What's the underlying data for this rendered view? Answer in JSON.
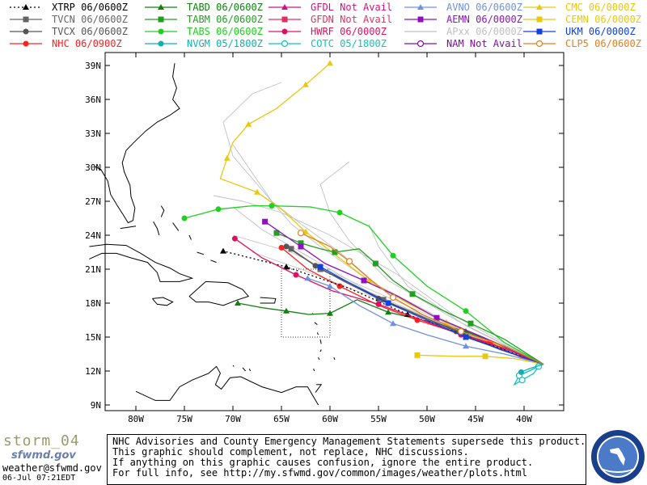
{
  "legend": [
    {
      "label": "XTRP 06/0600Z",
      "color": "#000000",
      "marker": "triangle",
      "dash": "2,3"
    },
    {
      "label": "TVCN 06/0600Z",
      "color": "#666666",
      "marker": "square",
      "dash": ""
    },
    {
      "label": "TVCX 06/0600Z",
      "color": "#555555",
      "marker": "circle",
      "dash": ""
    },
    {
      "label": "NHC 06/0900Z",
      "color": "#ff2020",
      "marker": "circle",
      "dash": ""
    },
    {
      "label": "TABD 06/0600Z",
      "color": "#108010",
      "marker": "triangle",
      "dash": ""
    },
    {
      "label": "TABM 06/0600Z",
      "color": "#20a020",
      "marker": "square",
      "dash": ""
    },
    {
      "label": "TABS 06/0600Z",
      "color": "#20d020",
      "marker": "circle",
      "dash": ""
    },
    {
      "label": "NVGM 05/1800Z",
      "color": "#10b0b0",
      "marker": "circle",
      "dash": ""
    },
    {
      "label": "GFDL Not Avail",
      "color": "#d01080",
      "marker": "triangle",
      "dash": ""
    },
    {
      "label": "GFDN Not Avail",
      "color": "#e03060",
      "marker": "square",
      "dash": ""
    },
    {
      "label": "HWRF 06/0000Z",
      "color": "#e01060",
      "marker": "circle",
      "dash": ""
    },
    {
      "label": "COTC 05/1800Z",
      "color": "#10c0c0",
      "marker": "ring",
      "dash": ""
    },
    {
      "label": "AVNO 06/0600Z",
      "color": "#7090e0",
      "marker": "triangle",
      "dash": ""
    },
    {
      "label": "AEMN 06/0000Z",
      "color": "#9010c0",
      "marker": "square",
      "dash": ""
    },
    {
      "label": "APxx 06/0000Z",
      "color": "#c0c0c0",
      "marker": "none",
      "dash": ""
    },
    {
      "label": "NAM  Not Avail",
      "color": "#8010a0",
      "marker": "ring",
      "dash": ""
    },
    {
      "label": "CMC  06/0000Z",
      "color": "#e8c810",
      "marker": "triangle",
      "dash": ""
    },
    {
      "label": "CEMN 06/0000Z",
      "color": "#e8c810",
      "marker": "square",
      "dash": ""
    },
    {
      "label": "UKM  06/0000Z",
      "color": "#1040e0",
      "marker": "square",
      "dash": ""
    },
    {
      "label": "CLP5 06/0600Z",
      "color": "#e08020",
      "marker": "ring",
      "dash": ""
    }
  ],
  "axes": {
    "lat_labels": [
      "39N",
      "36N",
      "33N",
      "30N",
      "27N",
      "24N",
      "21N",
      "18N",
      "15N",
      "12N",
      "9N"
    ],
    "lon_labels": [
      "80W",
      "75W",
      "70W",
      "65W",
      "60W",
      "55W",
      "50W",
      "45W",
      "40W"
    ]
  },
  "tracks": [
    {
      "model": "APxx",
      "color": "#c0c0c0",
      "pts": [
        [
          -38,
          12.6
        ],
        [
          -48,
          16
        ],
        [
          -56,
          19
        ],
        [
          -62,
          22
        ],
        [
          -67,
          24.5
        ],
        [
          -70,
          26.5
        ]
      ]
    },
    {
      "model": "APxx",
      "color": "#c0c0c0",
      "pts": [
        [
          -38,
          12.6
        ],
        [
          -47,
          16.5
        ],
        [
          -54,
          20
        ],
        [
          -58,
          23.5
        ],
        [
          -60,
          26
        ],
        [
          -61,
          28.5
        ],
        [
          -58,
          30.5
        ]
      ]
    },
    {
      "model": "APxx",
      "color": "#c0c0c0",
      "pts": [
        [
          -38,
          12.6
        ],
        [
          -48,
          16.2
        ],
        [
          -55,
          19.5
        ],
        [
          -59,
          22.5
        ],
        [
          -63,
          25
        ],
        [
          -66,
          27
        ],
        [
          -68,
          29.5
        ],
        [
          -70,
          32
        ]
      ]
    },
    {
      "model": "APxx",
      "color": "#c0c0c0",
      "pts": [
        [
          -38,
          12.6
        ],
        [
          -50,
          17
        ],
        [
          -58,
          20
        ],
        [
          -64,
          22.5
        ],
        [
          -70,
          24
        ]
      ]
    },
    {
      "model": "APxx",
      "color": "#c0c0c0",
      "pts": [
        [
          -38,
          12.6
        ],
        [
          -46,
          16
        ],
        [
          -52,
          19.5
        ],
        [
          -55,
          23
        ],
        [
          -56,
          25
        ]
      ]
    },
    {
      "model": "APxx",
      "color": "#c0c0c0",
      "pts": [
        [
          -38,
          12.6
        ],
        [
          -49,
          16.5
        ],
        [
          -57,
          19
        ],
        [
          -63,
          21
        ],
        [
          -68,
          22.5
        ]
      ]
    },
    {
      "model": "APxx",
      "color": "#c0c0c0",
      "pts": [
        [
          -38,
          12.6
        ],
        [
          -47,
          16.8
        ],
        [
          -53,
          20.5
        ],
        [
          -60,
          24
        ],
        [
          -65,
          26
        ],
        [
          -69,
          27
        ],
        [
          -72,
          27.5
        ]
      ]
    },
    {
      "model": "APxx",
      "color": "#c0c0c0",
      "pts": [
        [
          -38,
          12.6
        ],
        [
          -48,
          16.4
        ],
        [
          -56,
          20
        ],
        [
          -61,
          23
        ],
        [
          -64,
          25
        ],
        [
          -67,
          28
        ],
        [
          -70,
          31
        ],
        [
          -71,
          34
        ],
        [
          -68,
          36.5
        ],
        [
          -65,
          37.5
        ]
      ]
    },
    {
      "model": "CMC",
      "color": "#e8c810",
      "pts": [
        [
          -38,
          12.6
        ],
        [
          -44,
          14.8
        ],
        [
          -48,
          16.3
        ],
        [
          -52,
          18
        ],
        [
          -56,
          20
        ],
        [
          -59.5,
          22.3
        ],
        [
          -62.5,
          24.3
        ],
        [
          -65,
          26.3
        ],
        [
          -67.5,
          27.8
        ],
        [
          -71.3,
          29
        ],
        [
          -70.6,
          30.8
        ],
        [
          -70,
          32.2
        ],
        [
          -68.4,
          33.8
        ],
        [
          -65.5,
          35.2
        ],
        [
          -62.5,
          37.3
        ],
        [
          -60,
          39.2
        ]
      ]
    },
    {
      "model": "TABS",
      "color": "#20d020",
      "pts": [
        [
          -38,
          12.6
        ],
        [
          -42,
          14.5
        ],
        [
          -46,
          17.3
        ],
        [
          -50,
          19.5
        ],
        [
          -53.5,
          22.2
        ],
        [
          -56,
          24.8
        ],
        [
          -59,
          26
        ],
        [
          -62,
          26.5
        ],
        [
          -66,
          26.6
        ],
        [
          -68,
          26.6
        ],
        [
          -71.5,
          26.3
        ],
        [
          -75,
          25.5
        ]
      ]
    },
    {
      "model": "TABM",
      "color": "#20a020",
      "pts": [
        [
          -38,
          12.6
        ],
        [
          -42,
          14.8
        ],
        [
          -45.5,
          16.2
        ],
        [
          -48.5,
          17.4
        ],
        [
          -51.5,
          18.8
        ],
        [
          -53.5,
          20
        ],
        [
          -55.3,
          21.5
        ],
        [
          -57,
          22.8
        ],
        [
          -59.5,
          22.5
        ],
        [
          -61,
          22.8
        ],
        [
          -63,
          23.3
        ],
        [
          -65.5,
          24.2
        ]
      ]
    },
    {
      "model": "TABD",
      "color": "#108010",
      "pts": [
        [
          -38,
          12.6
        ],
        [
          -42,
          14.2
        ],
        [
          -46,
          15.5
        ],
        [
          -50,
          16.4
        ],
        [
          -54,
          17.2
        ],
        [
          -57.2,
          18.3
        ],
        [
          -60,
          17.1
        ],
        [
          -62.2,
          17
        ],
        [
          -64.5,
          17.3
        ],
        [
          -67,
          17.6
        ],
        [
          -69.5,
          18
        ]
      ]
    },
    {
      "model": "AEMN",
      "color": "#9010c0",
      "pts": [
        [
          -38,
          12.6
        ],
        [
          -44,
          14.9
        ],
        [
          -49,
          16.7
        ],
        [
          -53,
          18.6
        ],
        [
          -56.5,
          20
        ],
        [
          -60.5,
          21.5
        ],
        [
          -63,
          23
        ],
        [
          -66.7,
          25.2
        ]
      ]
    },
    {
      "model": "NHC",
      "color": "#ff2020",
      "pts": [
        [
          -38,
          12.6
        ],
        [
          -40.3,
          13.2
        ],
        [
          -43.5,
          14.5
        ],
        [
          -47,
          15.4
        ],
        [
          -51,
          16.5
        ],
        [
          -55,
          17.8
        ],
        [
          -59,
          19.5
        ],
        [
          -62.3,
          21
        ],
        [
          -65,
          22.9
        ]
      ]
    },
    {
      "model": "TVCN",
      "color": "#666666",
      "pts": [
        [
          -38,
          12.6
        ],
        [
          -42,
          13.8
        ],
        [
          -46.5,
          15.4
        ],
        [
          -50.5,
          16.8
        ],
        [
          -54.5,
          18.3
        ],
        [
          -58,
          19.8
        ],
        [
          -61,
          21
        ],
        [
          -64,
          22.8
        ]
      ]
    },
    {
      "model": "TVCX",
      "color": "#555555",
      "pts": [
        [
          -38,
          12.6
        ],
        [
          -42.5,
          13.9
        ],
        [
          -47,
          15.5
        ],
        [
          -51,
          17
        ],
        [
          -55,
          18.4
        ],
        [
          -58.5,
          19.9
        ],
        [
          -61.5,
          21.3
        ],
        [
          -64.5,
          23
        ]
      ]
    },
    {
      "model": "XTRP",
      "color": "#000000",
      "dash": "2,3",
      "pts": [
        [
          -38,
          12.6
        ],
        [
          -45,
          14.8
        ],
        [
          -52,
          17
        ],
        [
          -58,
          19.3
        ],
        [
          -64.5,
          21.2
        ],
        [
          -71,
          22.6
        ]
      ]
    },
    {
      "model": "HWRF",
      "color": "#e01060",
      "pts": [
        [
          -38,
          12.6
        ],
        [
          -42,
          14
        ],
        [
          -46.5,
          15.2
        ],
        [
          -50.5,
          16.5
        ],
        [
          -55,
          17.9
        ],
        [
          -59.8,
          19.1
        ],
        [
          -63.5,
          20.5
        ],
        [
          -67,
          22
        ],
        [
          -69.8,
          23.7
        ]
      ]
    },
    {
      "model": "AVNO",
      "color": "#7090e0",
      "pts": [
        [
          -38,
          12.6
        ],
        [
          -42,
          13.5
        ],
        [
          -46,
          14.2
        ],
        [
          -50,
          15.2
        ],
        [
          -53.5,
          16.2
        ],
        [
          -57,
          17.8
        ],
        [
          -60,
          19.5
        ],
        [
          -62.3,
          20.2
        ]
      ]
    },
    {
      "model": "CEMN",
      "color": "#e8c810",
      "pts": [
        [
          -38,
          12.6
        ],
        [
          -41,
          13.1
        ],
        [
          -44,
          13.3
        ],
        [
          -47,
          13.3
        ],
        [
          -51,
          13.4
        ]
      ]
    },
    {
      "model": "UKM",
      "color": "#1040e0",
      "pts": [
        [
          -38,
          12.6
        ],
        [
          -42,
          13.8
        ],
        [
          -46,
          15
        ],
        [
          -50,
          16.5
        ],
        [
          -54,
          18
        ],
        [
          -58,
          19.8
        ],
        [
          -61,
          21.2
        ]
      ]
    },
    {
      "model": "CLP5",
      "color": "#e08020",
      "pts": [
        [
          -38,
          12.6
        ],
        [
          -42,
          14.2
        ],
        [
          -46.5,
          15.5
        ],
        [
          -50.5,
          17
        ],
        [
          -53.5,
          18.5
        ],
        [
          -56,
          20.2
        ],
        [
          -58,
          21.7
        ],
        [
          -60,
          23
        ],
        [
          -63,
          24.2
        ]
      ]
    },
    {
      "model": "COTC",
      "color": "#10c0c0",
      "pts": [
        [
          -38,
          12.6
        ],
        [
          -39.5,
          12
        ],
        [
          -40.5,
          11.6
        ],
        [
          -41,
          10.8
        ],
        [
          -40.2,
          11.2
        ],
        [
          -39,
          11.8
        ],
        [
          -38.5,
          12.4
        ]
      ]
    },
    {
      "model": "NVGM",
      "color": "#10b0b0",
      "pts": [
        [
          -38,
          12.6
        ],
        [
          -39.5,
          12.2
        ],
        [
          -40.3,
          11.9
        ]
      ]
    }
  ],
  "footer": {
    "storm_name": "storm_04",
    "brand": "sfwmd.gov",
    "email": "weather@sfwmd.gov",
    "timestamp": "06-Jul 07:21EDT",
    "notice_lines": [
      "NHC Advisories and County Emergency Management Statements supersede this product.",
      "This graphic should complement, not replace, NHC discussions.",
      "If anything on this graphic causes confusion, ignore the entire product.",
      "For full info, see  http://my.sfwmd.gov/common/images/weather/plots.html"
    ]
  }
}
